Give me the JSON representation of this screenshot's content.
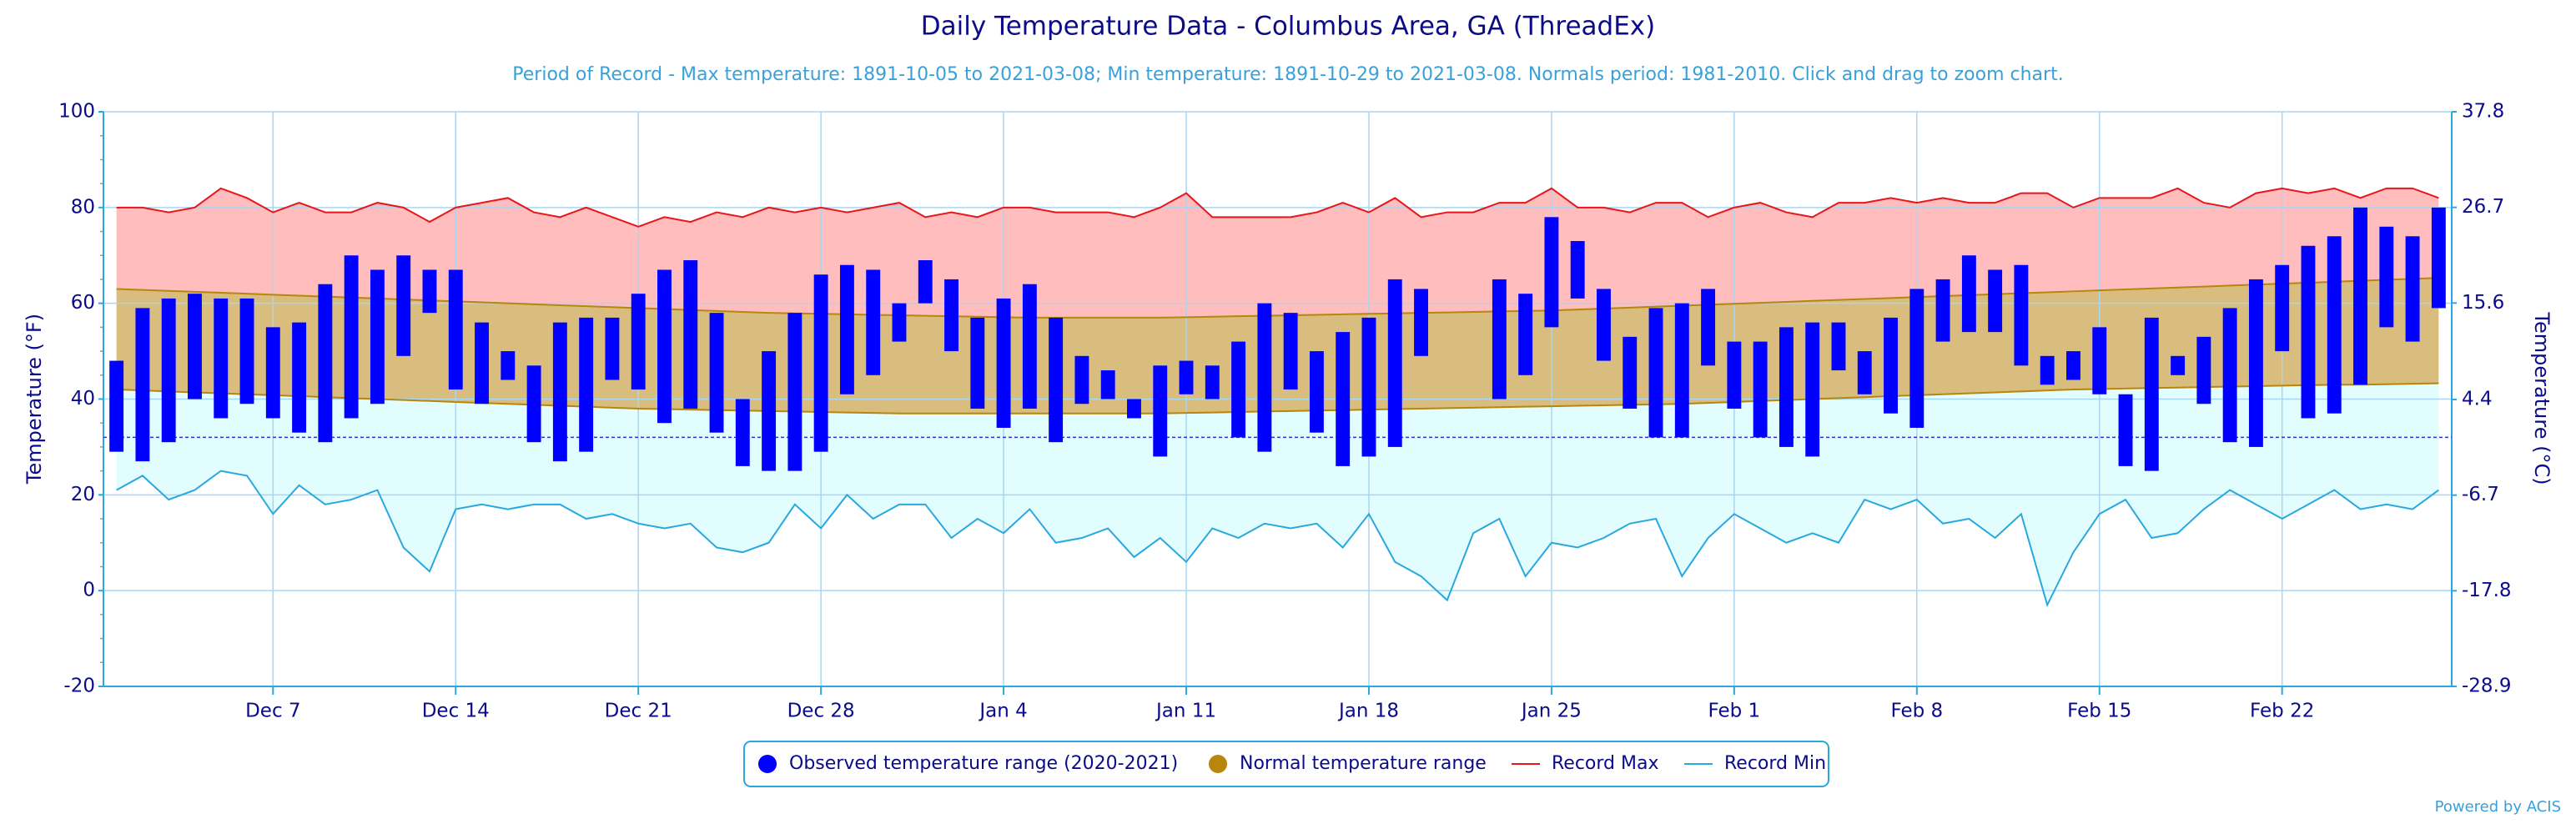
{
  "chart_data": {
    "type": "temperature-range",
    "title": "Daily Temperature Data - Columbus Area, GA (ThreadEx)",
    "subtitle": "Period of Record - Max temperature: 1891-10-05 to 2021-03-08; Min temperature: 1891-10-29 to 2021-03-08. Normals period: 1981-2010. Click and drag to zoom chart.",
    "credit": "Powered by ACIS",
    "y_label": "Temperature (°F)",
    "y2_label": "Temperature (°C)",
    "categories": [
      null,
      null,
      null,
      null,
      null,
      null,
      "Dec 7",
      null,
      null,
      null,
      null,
      null,
      null,
      "Dec 14",
      null,
      null,
      null,
      null,
      null,
      null,
      "Dec 21",
      null,
      null,
      null,
      null,
      null,
      null,
      "Dec 28",
      null,
      null,
      null,
      null,
      null,
      null,
      "Jan 4",
      null,
      null,
      null,
      null,
      null,
      null,
      "Jan 11",
      null,
      null,
      null,
      null,
      null,
      null,
      "Jan 18",
      null,
      null,
      null,
      null,
      null,
      null,
      "Jan 25",
      null,
      null,
      null,
      null,
      null,
      null,
      "Feb 1",
      null,
      null,
      null,
      null,
      null,
      null,
      "Feb 8",
      null,
      null,
      null,
      null,
      null,
      null,
      "Feb 15",
      null,
      null,
      null,
      null,
      null,
      null,
      "Feb 22",
      null,
      null,
      null,
      null,
      null,
      null
    ],
    "ylim": [
      -20,
      100
    ],
    "yticks": [
      -20,
      0,
      20,
      40,
      60,
      80,
      100
    ],
    "y2lim": [
      -28.9,
      37.8
    ],
    "y2ticks": [
      -28.9,
      -17.8,
      -6.7,
      4.4,
      15.6,
      26.7,
      37.8
    ],
    "reference_line": 32,
    "grid": true,
    "series": [
      {
        "name": "Observed temperature range (2020-2021)",
        "color": "#0000ff",
        "values": [
          48,
          59,
          61,
          62,
          61,
          61,
          55,
          56,
          64,
          70,
          67,
          70,
          67,
          67,
          56,
          50,
          47,
          56,
          57,
          57,
          62,
          67,
          69,
          58,
          40,
          50,
          58,
          66,
          68,
          67,
          60,
          69,
          65,
          57,
          61,
          64,
          57,
          49,
          46,
          40,
          47,
          48,
          47,
          52,
          60,
          58,
          50,
          54,
          57,
          65,
          63,
          null,
          null,
          65,
          62,
          78,
          73,
          63,
          53,
          59,
          60,
          63,
          52,
          52,
          55,
          56,
          56,
          50,
          57,
          63,
          65,
          70,
          67,
          68,
          49,
          50,
          55,
          41,
          57,
          49,
          53,
          59,
          65,
          68,
          72,
          74,
          80,
          76,
          74,
          80
        ],
        "low": [
          29,
          27,
          31,
          40,
          36,
          39,
          36,
          33,
          31,
          36,
          39,
          49,
          58,
          42,
          39,
          44,
          31,
          27,
          29,
          44,
          42,
          35,
          38,
          33,
          26,
          25,
          25,
          29,
          41,
          45,
          52,
          60,
          50,
          38,
          34,
          38,
          31,
          39,
          40,
          36,
          28,
          41,
          40,
          32,
          29,
          42,
          33,
          26,
          28,
          30,
          49,
          null,
          null,
          40,
          45,
          55,
          61,
          48,
          38,
          32,
          32,
          47,
          38,
          32,
          30,
          28,
          46,
          41,
          37,
          34,
          52,
          54,
          54,
          47,
          43,
          44,
          41,
          26,
          25,
          45,
          39,
          31,
          30,
          50,
          36,
          37,
          43,
          55,
          52,
          59
        ]
      },
      {
        "name": "Normal temperature range",
        "color": "#b8860b",
        "values": [
          63,
          62.8,
          62.6,
          62.4,
          62.2,
          62,
          61.8,
          61.6,
          61.4,
          61.2,
          61,
          60.8,
          60.6,
          60.4,
          60.2,
          60,
          59.8,
          59.6,
          59.4,
          59.2,
          59,
          58.8,
          58.6,
          58.4,
          58.2,
          58,
          57.9,
          57.8,
          57.7,
          57.6,
          57.5,
          57.4,
          57.3,
          57.2,
          57.1,
          57,
          57,
          57,
          57,
          57,
          57,
          57.1,
          57.2,
          57.3,
          57.4,
          57.5,
          57.6,
          57.7,
          57.8,
          57.9,
          58,
          58.1,
          58.2,
          58.3,
          58.4,
          58.5,
          58.7,
          58.9,
          59.1,
          59.3,
          59.5,
          59.7,
          59.9,
          60.1,
          60.3,
          60.5,
          60.7,
          60.9,
          61.1,
          61.3,
          61.5,
          61.7,
          61.9,
          62.1,
          62.3,
          62.5,
          62.7,
          62.9,
          63.1,
          63.3,
          63.5,
          63.7,
          63.9,
          64.1,
          64.3,
          64.5,
          64.7,
          64.9,
          65.1,
          65.3
        ],
        "low": [
          42,
          41.8,
          41.6,
          41.4,
          41.2,
          41,
          40.8,
          40.6,
          40.4,
          40.2,
          40,
          39.8,
          39.6,
          39.4,
          39.2,
          39,
          38.8,
          38.6,
          38.4,
          38.2,
          38,
          37.9,
          37.8,
          37.7,
          37.6,
          37.5,
          37.4,
          37.3,
          37.2,
          37.1,
          37,
          37,
          37,
          37,
          37,
          37,
          37,
          37,
          37,
          37,
          37,
          37.1,
          37.2,
          37.3,
          37.4,
          37.5,
          37.6,
          37.7,
          37.8,
          37.9,
          38,
          38.1,
          38.2,
          38.3,
          38.4,
          38.5,
          38.6,
          38.7,
          38.8,
          38.9,
          39,
          39.2,
          39.4,
          39.6,
          39.8,
          40,
          40.2,
          40.4,
          40.6,
          40.8,
          41,
          41.2,
          41.4,
          41.6,
          41.8,
          42,
          42.1,
          42.2,
          42.3,
          42.4,
          42.5,
          42.6,
          42.7,
          42.8,
          42.9,
          43,
          43,
          43.1,
          43.2,
          43.3
        ]
      },
      {
        "name": "Record Max",
        "color": "#e8161b",
        "values": [
          80,
          80,
          79,
          80,
          84,
          82,
          79,
          81,
          79,
          79,
          81,
          80,
          77,
          80,
          81,
          82,
          79,
          78,
          80,
          78,
          76,
          78,
          77,
          79,
          78,
          80,
          79,
          80,
          79,
          80,
          81,
          78,
          79,
          78,
          80,
          80,
          79,
          79,
          79,
          78,
          80,
          83,
          78,
          78,
          78,
          78,
          79,
          81,
          79,
          82,
          78,
          79,
          79,
          81,
          81,
          84,
          80,
          80,
          79,
          81,
          81,
          78,
          80,
          81,
          79,
          78,
          81,
          81,
          82,
          81,
          82,
          81,
          81,
          83,
          83,
          80,
          82,
          82,
          82,
          84,
          81,
          80,
          83,
          84,
          83,
          84,
          82,
          84,
          84,
          82
        ]
      },
      {
        "name": "Record Min",
        "color": "#29a8e0",
        "values": [
          21,
          24,
          19,
          21,
          25,
          24,
          16,
          22,
          18,
          19,
          21,
          9,
          4,
          17,
          18,
          17,
          18,
          18,
          15,
          16,
          14,
          13,
          14,
          9,
          8,
          10,
          18,
          13,
          20,
          15,
          18,
          18,
          11,
          15,
          12,
          17,
          10,
          11,
          13,
          7,
          11,
          6,
          13,
          11,
          14,
          13,
          14,
          9,
          16,
          6,
          3,
          -2,
          12,
          15,
          3,
          10,
          9,
          11,
          14,
          15,
          3,
          11,
          16,
          13,
          10,
          12,
          10,
          19,
          17,
          19,
          14,
          15,
          11,
          16,
          -3,
          8,
          16,
          19,
          11,
          12,
          17,
          21,
          18,
          15,
          18,
          21,
          17,
          18,
          17,
          21
        ]
      }
    ]
  }
}
